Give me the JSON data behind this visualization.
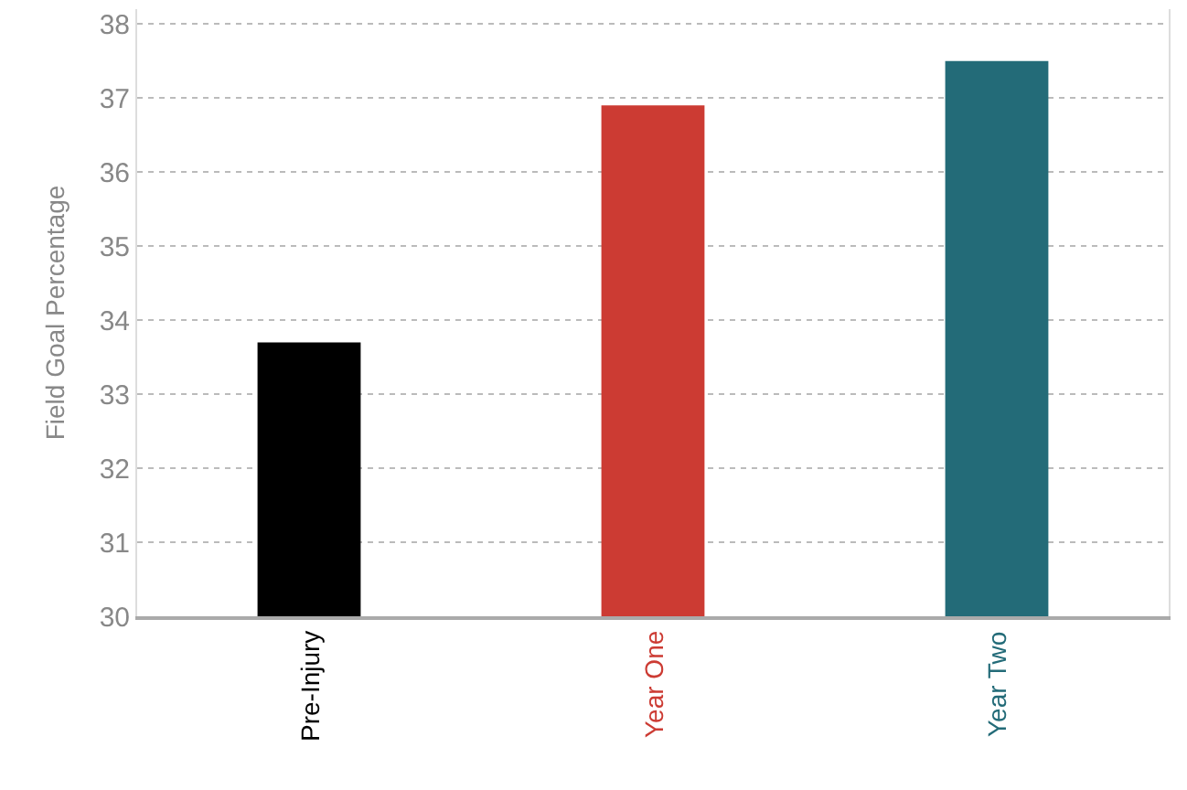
{
  "chart_data": {
    "type": "bar",
    "ylabel": "Field Goal Percentage",
    "categories": [
      "Pre-Injury",
      "Year One",
      "Year Two"
    ],
    "values": [
      33.7,
      36.9,
      37.5
    ],
    "colors": [
      "#000000",
      "#cc3b33",
      "#236b78"
    ],
    "ylim": [
      30,
      38.2
    ],
    "yticks": [
      30,
      31,
      32,
      33,
      34,
      35,
      36,
      37,
      38
    ],
    "grid": "y",
    "legend": false
  }
}
